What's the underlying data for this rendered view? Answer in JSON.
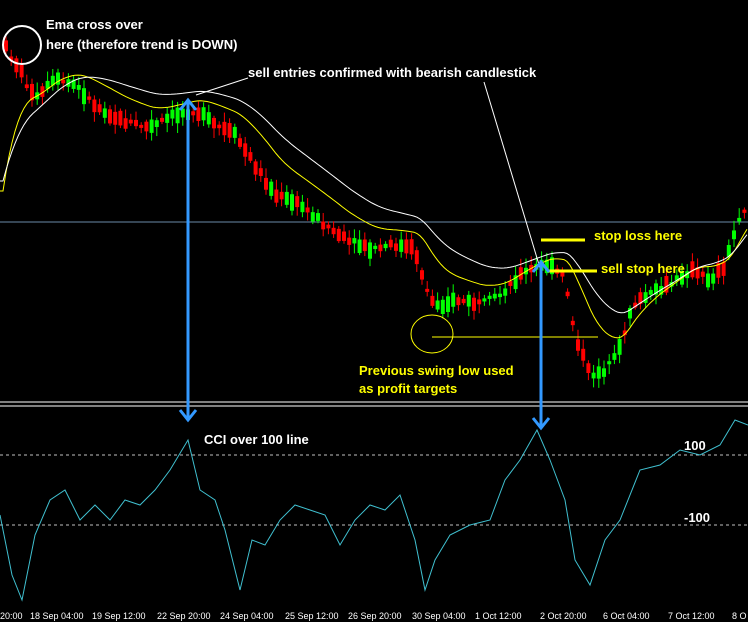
{
  "chart_data": {
    "type": "candlestick",
    "ema_fast_color": "#ffff00",
    "ema_slow_color": "#ffffff",
    "bull_color": "#00ff00",
    "bear_color": "#ff0000",
    "cci_color": "#40c0d0",
    "x_tick_labels": [
      "20:00",
      "18 Sep 04:00",
      "19 Sep 12:00",
      "22 Sep 20:00",
      "24 Sep 04:00",
      "25 Sep 12:00",
      "26 Sep 20:00",
      "30 Sep 04:00",
      "1 Oct 12:00",
      "2 Oct 20:00",
      "6 Oct 04:00",
      "7 Oct 12:00",
      "8 O"
    ],
    "cci_levels": [
      "100",
      "-100"
    ],
    "annotations": {
      "ema_cross": "Ema cross over",
      "ema_cross_2": "here   (therefore trend is DOWN)",
      "sell_entries": "sell entries confirmed with bearish candlestick",
      "stop_loss": "stop loss here",
      "sell_stop": "sell stop here",
      "swing_low": "Previous swing low used",
      "swing_low_2": "as profit targets",
      "cci_note": "CCI over 100 line"
    }
  }
}
